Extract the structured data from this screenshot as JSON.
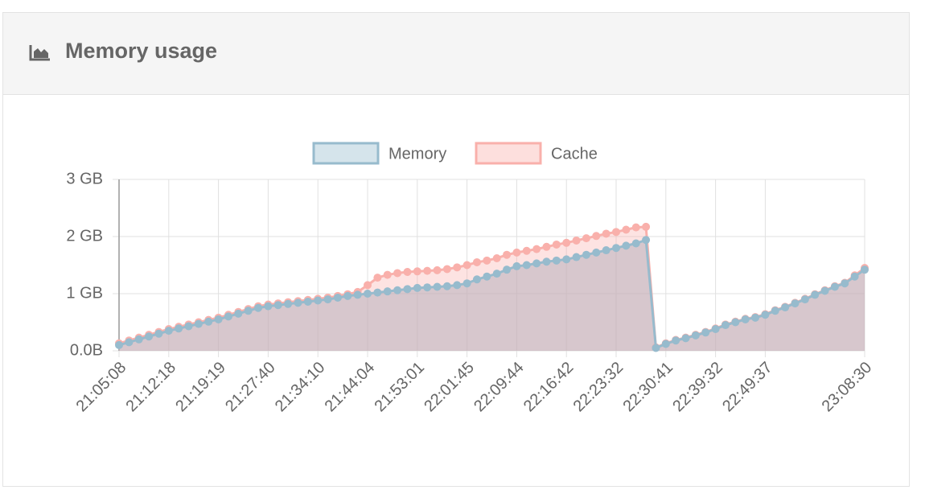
{
  "header": {
    "title": "Memory usage"
  },
  "chart_data": {
    "type": "area",
    "categories": [
      "21:05:08",
      null,
      null,
      null,
      null,
      "21:12:18",
      null,
      null,
      null,
      null,
      "21:19:19",
      null,
      null,
      null,
      null,
      "21:27:40",
      null,
      null,
      null,
      null,
      "21:34:10",
      null,
      null,
      null,
      null,
      "21:44:04",
      null,
      null,
      null,
      null,
      "21:53:01",
      null,
      null,
      null,
      null,
      "22:01:45",
      null,
      null,
      null,
      null,
      "22:09:44",
      null,
      null,
      null,
      null,
      "22:16:42",
      null,
      null,
      null,
      null,
      "22:23:32",
      null,
      null,
      null,
      null,
      "22:30:41",
      null,
      null,
      null,
      null,
      "22:39:32",
      null,
      null,
      null,
      null,
      "22:49:37",
      null,
      null,
      null,
      null,
      null,
      null,
      null,
      null,
      null,
      "23:08:30"
    ],
    "series": [
      {
        "name": "Memory",
        "color": "#97bbcd",
        "values": [
          0.1,
          0.15,
          0.2,
          0.25,
          0.3,
          0.35,
          0.39,
          0.43,
          0.47,
          0.51,
          0.55,
          0.6,
          0.65,
          0.7,
          0.75,
          0.78,
          0.8,
          0.82,
          0.84,
          0.86,
          0.88,
          0.9,
          0.93,
          0.96,
          0.98,
          1.0,
          1.02,
          1.04,
          1.06,
          1.08,
          1.1,
          1.11,
          1.12,
          1.13,
          1.15,
          1.18,
          1.25,
          1.3,
          1.35,
          1.42,
          1.48,
          1.5,
          1.53,
          1.56,
          1.58,
          1.6,
          1.64,
          1.68,
          1.72,
          1.76,
          1.8,
          1.84,
          1.88,
          1.94,
          0.05,
          0.12,
          0.18,
          0.22,
          0.27,
          0.32,
          0.38,
          0.45,
          0.5,
          0.55,
          0.58,
          0.63,
          0.7,
          0.76,
          0.83,
          0.9,
          0.98,
          1.05,
          1.12,
          1.18,
          1.3,
          1.42
        ]
      },
      {
        "name": "Cache",
        "color": "#f9b0ab",
        "values": [
          0.13,
          0.18,
          0.23,
          0.28,
          0.33,
          0.38,
          0.42,
          0.46,
          0.5,
          0.54,
          0.58,
          0.63,
          0.68,
          0.73,
          0.78,
          0.81,
          0.83,
          0.85,
          0.87,
          0.89,
          0.91,
          0.93,
          0.96,
          0.99,
          1.03,
          1.15,
          1.28,
          1.33,
          1.36,
          1.38,
          1.39,
          1.4,
          1.41,
          1.43,
          1.46,
          1.5,
          1.55,
          1.58,
          1.62,
          1.68,
          1.72,
          1.75,
          1.78,
          1.82,
          1.86,
          1.89,
          1.93,
          1.97,
          2.01,
          2.05,
          2.08,
          2.12,
          2.16,
          2.17,
          0.06,
          0.13,
          0.19,
          0.23,
          0.28,
          0.33,
          0.39,
          0.46,
          0.51,
          0.56,
          0.59,
          0.64,
          0.71,
          0.77,
          0.84,
          0.91,
          0.99,
          1.06,
          1.13,
          1.19,
          1.32,
          1.45
        ]
      }
    ],
    "ylim": [
      0,
      3
    ],
    "yticks": [
      {
        "value": 0,
        "label": "0.0B"
      },
      {
        "value": 1,
        "label": "1 GB"
      },
      {
        "value": 2,
        "label": "2 GB"
      },
      {
        "value": 3,
        "label": "3 GB"
      }
    ],
    "grid": true,
    "legend": "top"
  }
}
